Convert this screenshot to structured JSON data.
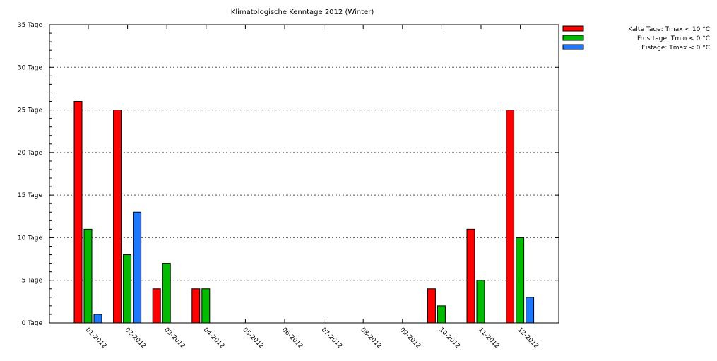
{
  "chart_data": {
    "type": "bar",
    "title": "Klimatologische Kenntage 2012 (Winter)",
    "xlabel": "",
    "ylabel": "",
    "ylim": [
      0,
      35
    ],
    "y_ticks": [
      0,
      5,
      10,
      15,
      20,
      25,
      30,
      35
    ],
    "y_tick_labels": [
      "0 Tage",
      "5 Tage",
      "10 Tage",
      "15 Tage",
      "20 Tage",
      "25 Tage",
      "30 Tage",
      "35 Tage"
    ],
    "grid": true,
    "legend_position": "top-right",
    "categories": [
      "01-2012",
      "02-2012",
      "03-2012",
      "04-2012",
      "05-2012",
      "06-2012",
      "07-2012",
      "08-2012",
      "09-2012",
      "10-2012",
      "11-2012",
      "12-2012"
    ],
    "series": [
      {
        "name": "Kalte Tage: Tmax < 10 °C",
        "color": "#ff0000",
        "values": [
          26,
          25,
          4,
          4,
          0,
          0,
          0,
          0,
          0,
          4,
          11,
          25
        ]
      },
      {
        "name": "Frosttage: Tmin < 0 °C",
        "color": "#00bb00",
        "values": [
          11,
          8,
          7,
          4,
          0,
          0,
          0,
          0,
          0,
          2,
          5,
          10
        ]
      },
      {
        "name": "Eistage: Tmax < 0 °C",
        "color": "#1e78ff",
        "values": [
          1,
          13,
          0,
          0,
          0,
          0,
          0,
          0,
          0,
          0,
          0,
          3
        ]
      }
    ]
  }
}
